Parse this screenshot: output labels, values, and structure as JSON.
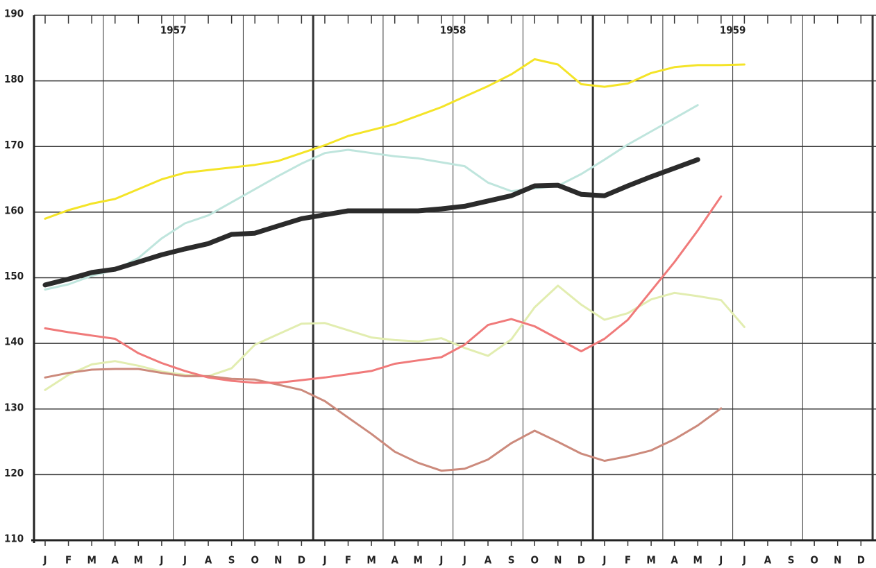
{
  "chart_data": {
    "type": "line",
    "annotations": [
      "1957",
      "1958",
      "1959"
    ],
    "categories": [
      "J",
      "F",
      "M",
      "A",
      "M",
      "J",
      "J",
      "A",
      "S",
      "O",
      "N",
      "D",
      "J",
      "F",
      "M",
      "A",
      "M",
      "J",
      "J",
      "A",
      "S",
      "O",
      "N",
      "D",
      "J",
      "F",
      "M",
      "A",
      "M",
      "J",
      "J",
      "A",
      "S",
      "O",
      "N",
      "D"
    ],
    "ylim": [
      110,
      190
    ],
    "yticks": [
      110,
      120,
      130,
      140,
      150,
      160,
      170,
      180,
      190
    ],
    "grid": true,
    "series": [
      {
        "color": "#f4e428",
        "width": 3,
        "values": [
          159,
          160.3,
          161.3,
          162,
          163.5,
          165,
          166,
          166.4,
          166.8,
          167.2,
          167.8,
          169,
          170.2,
          171.6,
          172.5,
          173.4,
          174.7,
          176,
          177.6,
          179.2,
          181,
          183.3,
          182.5,
          179.5,
          179.1,
          179.6,
          181.2,
          182.1,
          182.4,
          182.4,
          182.5,
          null,
          null,
          null,
          null,
          null
        ]
      },
      {
        "color": "#bfe5dd",
        "width": 3,
        "values": [
          148.2,
          149,
          150.3,
          151.2,
          153,
          156,
          158.3,
          159.5,
          161.5,
          163.5,
          165.5,
          167.4,
          169,
          169.5,
          169,
          168.5,
          168.2,
          167.6,
          167,
          164.5,
          163.2,
          163.6,
          164,
          165.8,
          168,
          170.3,
          172.3,
          174.3,
          176.3,
          null,
          null,
          null,
          null,
          null,
          null,
          null
        ]
      },
      {
        "color": "#e2edb0",
        "width": 3,
        "values": [
          132.9,
          135.2,
          136.8,
          137.3,
          136.6,
          135.7,
          135.2,
          135,
          136.2,
          139.8,
          141.4,
          143,
          143.1,
          142,
          140.9,
          140.5,
          140.3,
          140.8,
          139.3,
          138.1,
          140.6,
          145.5,
          148.8,
          145.9,
          143.6,
          144.6,
          146.7,
          147.7,
          147.2,
          146.6,
          142.5,
          null,
          null,
          null,
          null,
          null
        ]
      },
      {
        "color": "#cc8a7c",
        "width": 3,
        "values": [
          134.8,
          135.5,
          136,
          136.1,
          136.1,
          135.5,
          135,
          135,
          134.6,
          134.5,
          133.7,
          132.9,
          131.2,
          128.7,
          126.2,
          123.5,
          121.8,
          120.6,
          120.9,
          122.3,
          124.8,
          126.7,
          125,
          123.2,
          122.1,
          122.8,
          123.7,
          125.4,
          127.5,
          130.1,
          null,
          null,
          null,
          null,
          null,
          null
        ]
      },
      {
        "color": "#f07a7a",
        "width": 3,
        "values": [
          142.3,
          141.7,
          141.2,
          140.7,
          138.5,
          137,
          135.8,
          134.8,
          134.3,
          134,
          134,
          134.4,
          134.8,
          135.3,
          135.8,
          136.9,
          137.4,
          137.9,
          139.8,
          142.8,
          143.7,
          142.6,
          140.7,
          138.8,
          140.7,
          143.6,
          148,
          152.4,
          157.2,
          162.4,
          null,
          null,
          null,
          null,
          null,
          null
        ]
      },
      {
        "color": "#2b2b2b",
        "width": 7,
        "values": [
          148.9,
          149.8,
          150.8,
          151.3,
          152.4,
          153.5,
          154.4,
          155.2,
          156.6,
          156.8,
          157.9,
          159,
          159.6,
          160.2,
          160.2,
          160.2,
          160.2,
          160.5,
          160.9,
          161.7,
          162.5,
          164,
          164.1,
          162.7,
          162.5,
          164,
          165.4,
          166.7,
          168,
          null,
          null,
          null,
          null,
          null,
          null,
          null
        ]
      }
    ]
  }
}
